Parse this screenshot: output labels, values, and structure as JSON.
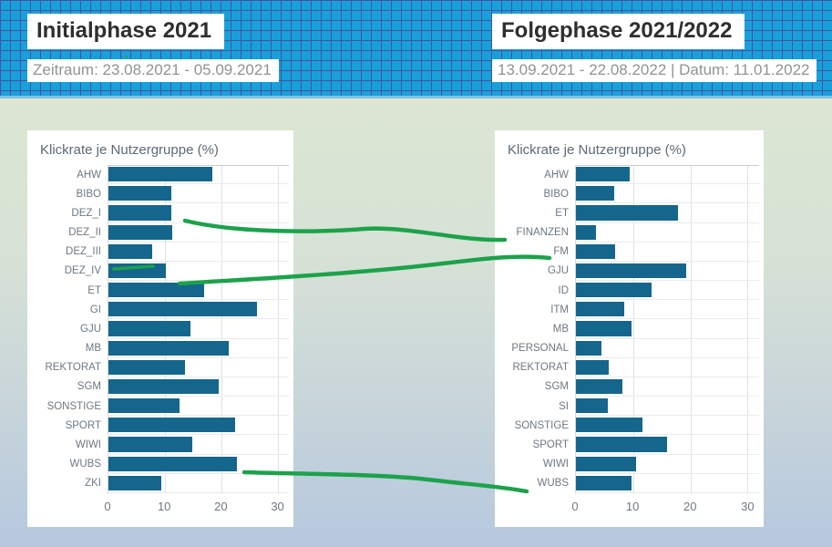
{
  "header": {
    "left": {
      "title": "Initialphase 2021",
      "subtitle": "Zeitraum: 23.08.2021 - 05.09.2021"
    },
    "right": {
      "title": "Folgephase 2021/2022",
      "subtitle": "13.09.2021 - 22.08.2022 | Datum: 11.01.2022"
    }
  },
  "chart_data": [
    {
      "type": "bar",
      "orientation": "horizontal",
      "title": "Klickrate je Nutzergruppe (%)",
      "categories": [
        "AHW",
        "BIBO",
        "DEZ_I",
        "DEZ_II",
        "DEZ_III",
        "DEZ_IV",
        "ET",
        "GI",
        "GJU",
        "MB",
        "REKTORAT",
        "SGM",
        "SONSTIGE",
        "SPORT",
        "WIWI",
        "WUBS",
        "ZKI"
      ],
      "values": [
        18.3,
        11.1,
        11.1,
        11.2,
        7.7,
        10.2,
        16.9,
        26.2,
        14.4,
        21.3,
        13.5,
        19.4,
        12.6,
        22.4,
        14.8,
        22.7,
        9.4
      ],
      "xlabel": "",
      "ylabel": "",
      "xlim": [
        0,
        32
      ],
      "xticks": [
        0,
        10,
        20,
        30
      ],
      "grid": true,
      "bar_color": "#15668c"
    },
    {
      "type": "bar",
      "orientation": "horizontal",
      "title": "Klickrate je Nutzergruppe (%)",
      "categories": [
        "AHW",
        "BIBO",
        "ET",
        "FINANZEN",
        "FM",
        "GJU",
        "ID",
        "ITM",
        "MB",
        "PERSONAL",
        "REKTORAT",
        "SGM",
        "SI",
        "SONSTIGE",
        "SPORT",
        "WIWI",
        "WUBS"
      ],
      "values": [
        9.4,
        6.6,
        17.8,
        3.5,
        6.8,
        19.2,
        13.1,
        8.4,
        9.6,
        4.4,
        5.7,
        8.1,
        5.5,
        11.5,
        15.8,
        10.5,
        9.7
      ],
      "xlabel": "",
      "ylabel": "",
      "xlim": [
        0,
        32
      ],
      "xticks": [
        0,
        10,
        20,
        30
      ],
      "grid": true,
      "bar_color": "#15668c"
    }
  ],
  "annotations": {
    "line_color": "#1ca24b",
    "links": [
      {
        "from_chart": 0,
        "from": "DEZ_I",
        "to_chart": 1,
        "to": "FINANZEN"
      },
      {
        "from_chart": 0,
        "from": "DEZ_IV",
        "to_chart": 1,
        "to": "FM"
      },
      {
        "from_chart": 0,
        "from": "WUBS",
        "to_chart": 1,
        "to": "WUBS"
      },
      {
        "from_chart": 0,
        "underline": "DEZ_III"
      }
    ]
  },
  "colors": {
    "header_bg": "#18a0da",
    "header_grid": "#4753a0",
    "bar": "#15668c",
    "annotation_green": "#1ca24b",
    "content_bg_top": "#dce6d2",
    "content_bg_bottom": "#b5c8de"
  }
}
